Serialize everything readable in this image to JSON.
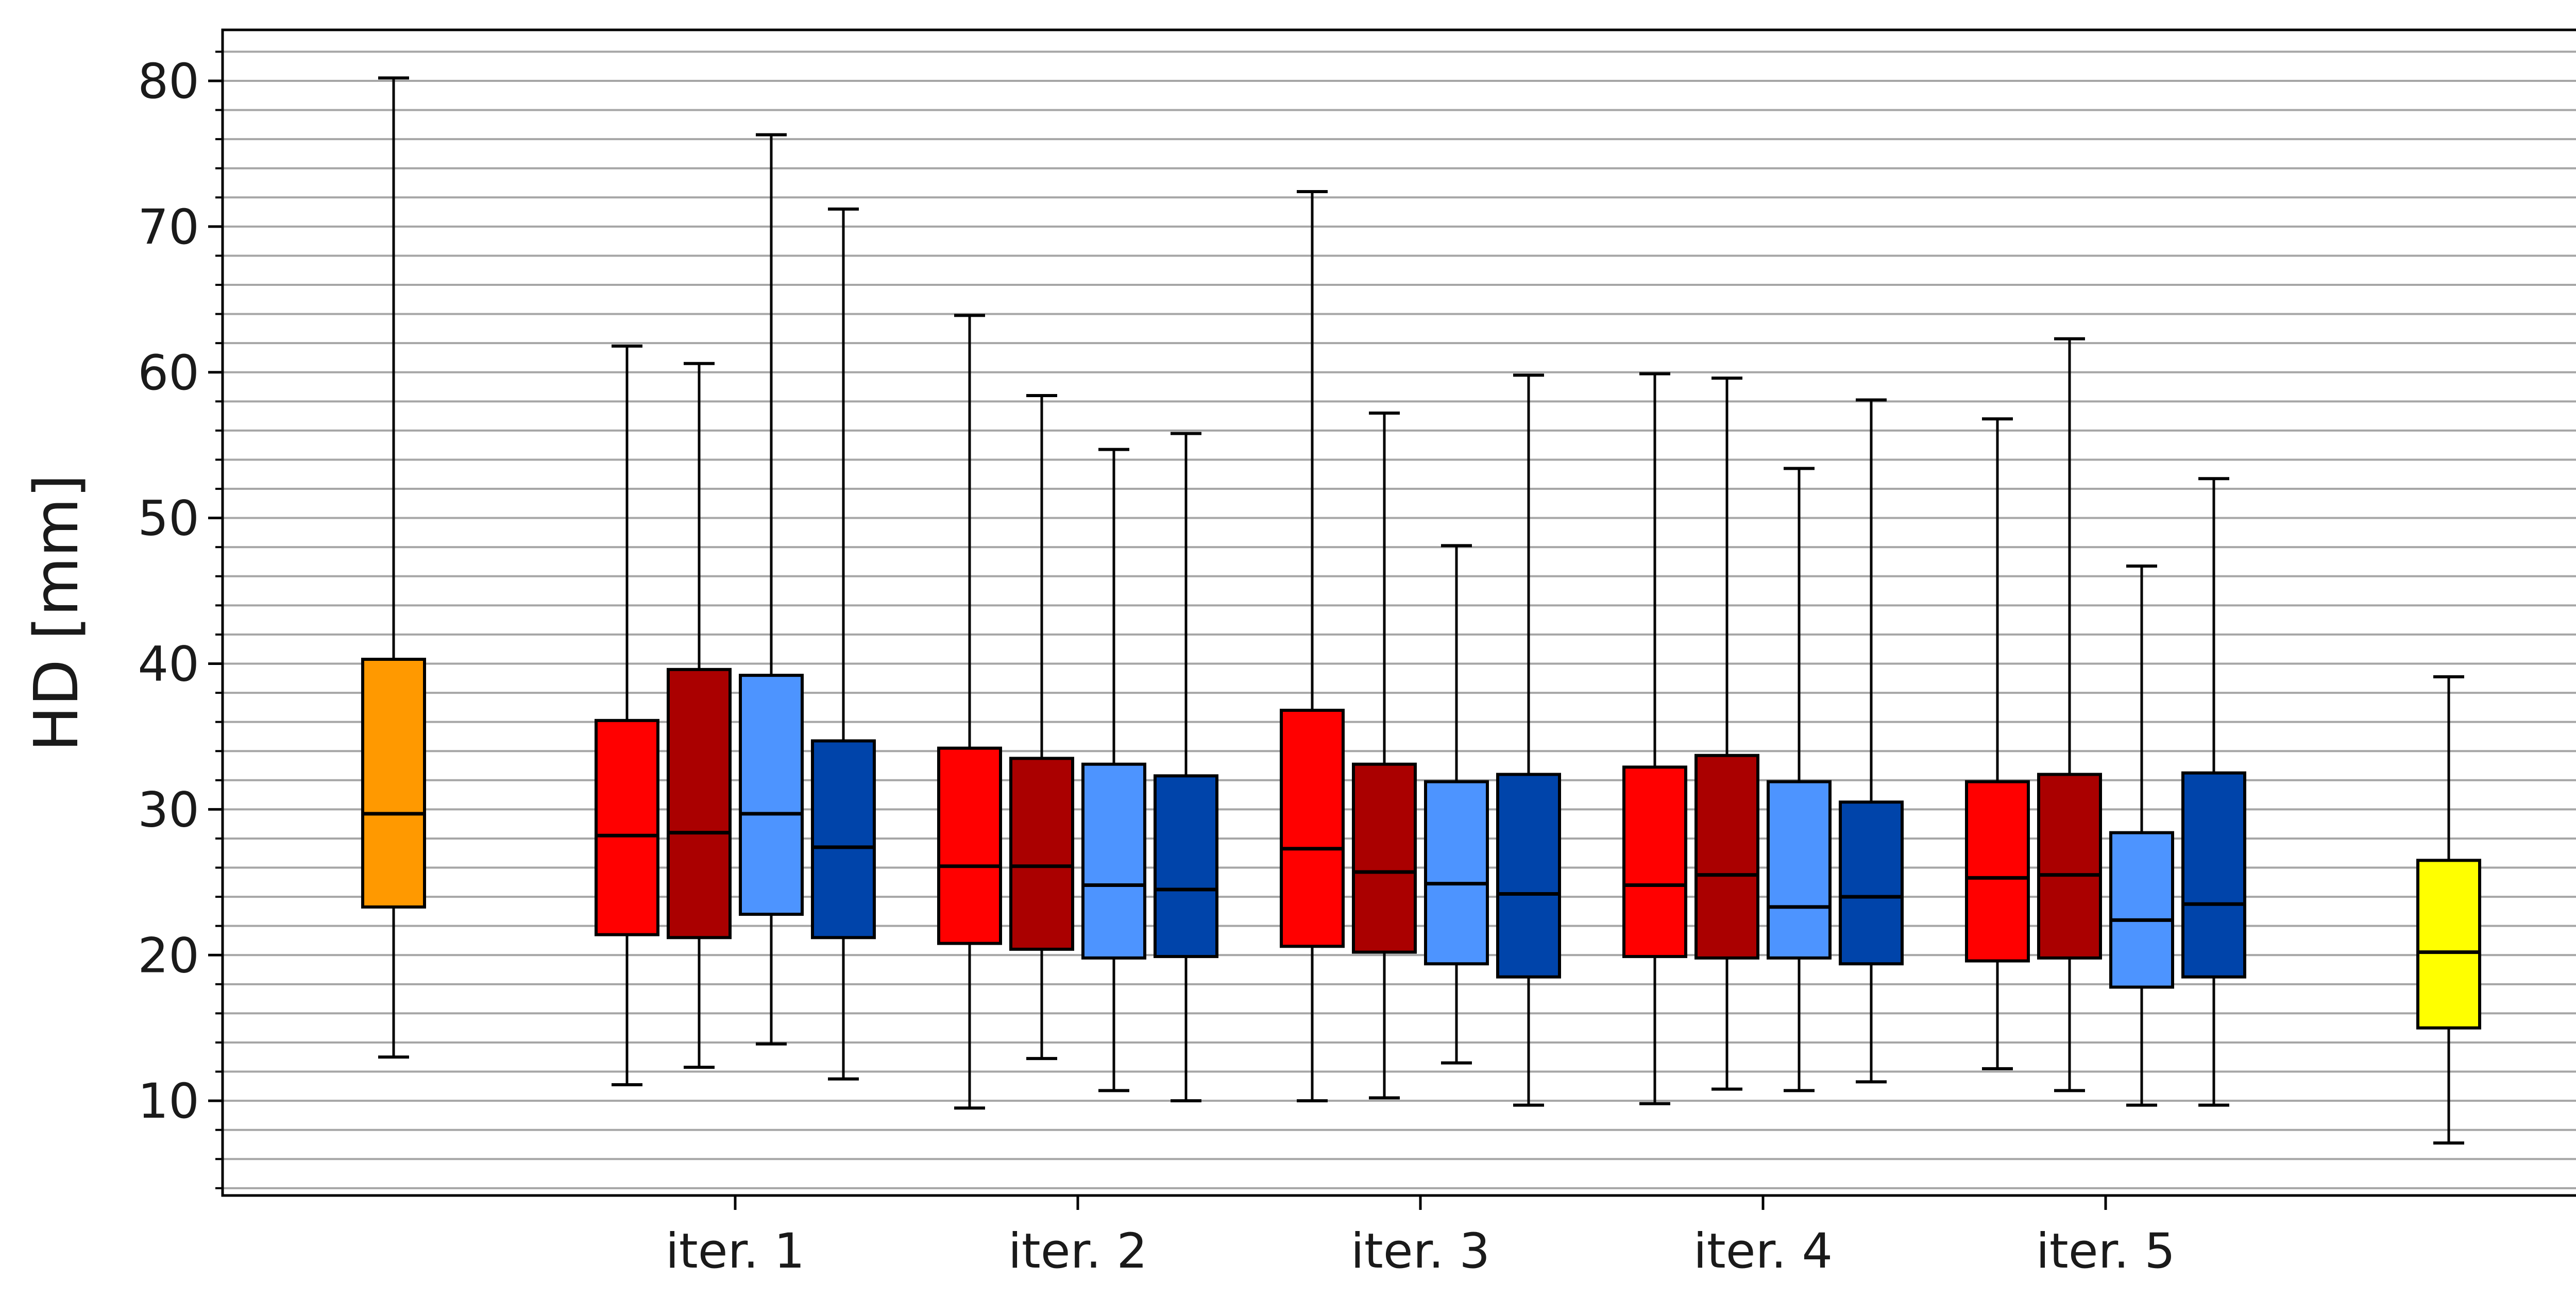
{
  "chart_data": {
    "type": "box",
    "ylabel": "HD [mm]",
    "xlabel": "",
    "ylim": [
      3.5,
      83.5
    ],
    "yticks": [
      10,
      20,
      30,
      40,
      50,
      60,
      70,
      80
    ],
    "y_minor_step": 2,
    "grid": "horizontal minor lines every 2 mm",
    "legend": "none",
    "categories": [
      "iter. 1",
      "iter. 2",
      "iter. 3",
      "iter. 4",
      "iter. 5"
    ],
    "group_colors": [
      "#ff0000",
      "#aa0000",
      "#4d94ff",
      "#0044aa"
    ],
    "reference_boxes": [
      {
        "color": "#ff9900",
        "whislo": 13.0,
        "q1": 23.3,
        "med": 29.7,
        "q3": 40.3,
        "whishi": 80.2
      },
      {
        "color": "#ffff00",
        "whislo": 7.1,
        "q1": 15.0,
        "med": 20.2,
        "q3": 26.5,
        "whishi": 39.1
      }
    ],
    "groups": [
      {
        "label": "iter. 1",
        "boxes": [
          {
            "whislo": 11.1,
            "q1": 21.4,
            "med": 28.2,
            "q3": 36.1,
            "whishi": 61.8
          },
          {
            "whislo": 12.3,
            "q1": 21.2,
            "med": 28.4,
            "q3": 39.6,
            "whishi": 60.6
          },
          {
            "whislo": 13.9,
            "q1": 22.8,
            "med": 29.7,
            "q3": 39.2,
            "whishi": 76.3
          },
          {
            "whislo": 11.5,
            "q1": 21.2,
            "med": 27.4,
            "q3": 34.7,
            "whishi": 71.2
          }
        ]
      },
      {
        "label": "iter. 2",
        "boxes": [
          {
            "whislo": 9.5,
            "q1": 20.8,
            "med": 26.1,
            "q3": 34.2,
            "whishi": 63.9
          },
          {
            "whislo": 12.9,
            "q1": 20.4,
            "med": 26.1,
            "q3": 33.5,
            "whishi": 58.4
          },
          {
            "whislo": 10.7,
            "q1": 19.8,
            "med": 24.8,
            "q3": 33.1,
            "whishi": 54.7
          },
          {
            "whislo": 10.0,
            "q1": 19.9,
            "med": 24.5,
            "q3": 32.3,
            "whishi": 55.8
          }
        ]
      },
      {
        "label": "iter. 3",
        "boxes": [
          {
            "whislo": 10.0,
            "q1": 20.6,
            "med": 27.3,
            "q3": 36.8,
            "whishi": 72.4
          },
          {
            "whislo": 10.2,
            "q1": 20.2,
            "med": 25.7,
            "q3": 33.1,
            "whishi": 57.2
          },
          {
            "whislo": 12.6,
            "q1": 19.4,
            "med": 24.9,
            "q3": 31.9,
            "whishi": 48.1
          },
          {
            "whislo": 9.7,
            "q1": 18.5,
            "med": 24.2,
            "q3": 32.4,
            "whishi": 59.8
          }
        ]
      },
      {
        "label": "iter. 4",
        "boxes": [
          {
            "whislo": 9.8,
            "q1": 19.9,
            "med": 24.8,
            "q3": 32.9,
            "whishi": 59.9
          },
          {
            "whislo": 10.8,
            "q1": 19.8,
            "med": 25.5,
            "q3": 33.7,
            "whishi": 59.6
          },
          {
            "whislo": 10.7,
            "q1": 19.8,
            "med": 23.3,
            "q3": 31.9,
            "whishi": 53.4
          },
          {
            "whislo": 11.3,
            "q1": 19.4,
            "med": 24.0,
            "q3": 30.5,
            "whishi": 58.1
          }
        ]
      },
      {
        "label": "iter. 5",
        "boxes": [
          {
            "whislo": 12.2,
            "q1": 19.6,
            "med": 25.3,
            "q3": 31.9,
            "whishi": 56.8
          },
          {
            "whislo": 10.7,
            "q1": 19.8,
            "med": 25.5,
            "q3": 32.4,
            "whishi": 62.3
          },
          {
            "whislo": 9.7,
            "q1": 17.8,
            "med": 22.4,
            "q3": 28.4,
            "whishi": 46.7
          },
          {
            "whislo": 9.7,
            "q1": 18.5,
            "med": 23.5,
            "q3": 32.5,
            "whishi": 52.7
          }
        ]
      }
    ]
  }
}
